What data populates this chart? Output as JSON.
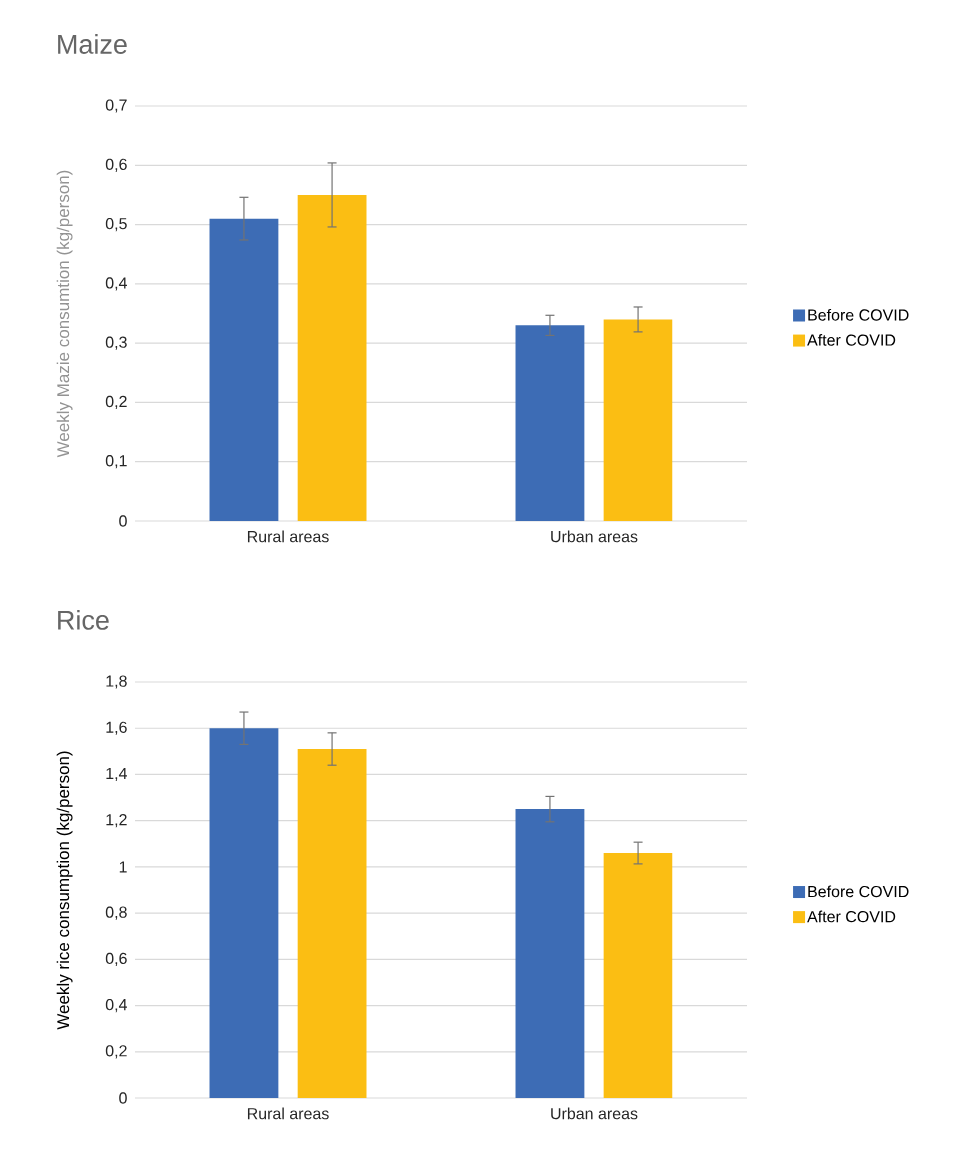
{
  "chart_data": [
    {
      "type": "bar",
      "title": "Maize",
      "ylabel": "Weekly Mazie consumtion (kg/person)",
      "categories": [
        "Rural areas",
        "Urban areas"
      ],
      "series": [
        {
          "name": "Before COVID",
          "color": "#3d6cb5",
          "values": [
            0.51,
            0.33
          ],
          "errors": [
            0.036,
            0.017
          ]
        },
        {
          "name": "After COVID",
          "color": "#fbbe13",
          "values": [
            0.55,
            0.34
          ],
          "errors": [
            0.054,
            0.021
          ]
        }
      ],
      "ylim": [
        0,
        0.7
      ],
      "yticks": [
        0,
        {
          "value": 0.1,
          "label": "0,1"
        },
        {
          "value": 0.2,
          "label": "0,2"
        },
        {
          "value": 0.3,
          "label": "0,3"
        },
        {
          "value": 0.4,
          "label": "0,4"
        },
        {
          "value": 0.5,
          "label": "0,5"
        },
        {
          "value": 0.6,
          "label": "0,6"
        },
        {
          "value": 0.7,
          "label": "0,7"
        }
      ],
      "grid": "y",
      "legend": "right"
    },
    {
      "type": "bar",
      "title": "Rice",
      "ylabel": "Weekly rice consumption (kg/person)",
      "categories": [
        "Rural areas",
        "Urban areas"
      ],
      "series": [
        {
          "name": "Before COVID",
          "color": "#3d6cb5",
          "values": [
            1.6,
            1.25
          ],
          "errors": [
            0.07,
            0.055
          ]
        },
        {
          "name": "After COVID",
          "color": "#fbbe13",
          "values": [
            1.51,
            1.06
          ],
          "errors": [
            0.07,
            0.047
          ]
        }
      ],
      "ylim": [
        0,
        1.8
      ],
      "yticks": [
        0,
        {
          "value": 0.2,
          "label": "0,2"
        },
        {
          "value": 0.4,
          "label": "0,4"
        },
        {
          "value": 0.6,
          "label": "0,6"
        },
        {
          "value": 0.8,
          "label": "0,8"
        },
        1,
        {
          "value": 1.2,
          "label": "1,2"
        },
        {
          "value": 1.4,
          "label": "1,4"
        },
        {
          "value": 1.6,
          "label": "1,6"
        },
        {
          "value": 1.8,
          "label": "1,8"
        }
      ],
      "grid": "y",
      "legend": "right"
    }
  ]
}
